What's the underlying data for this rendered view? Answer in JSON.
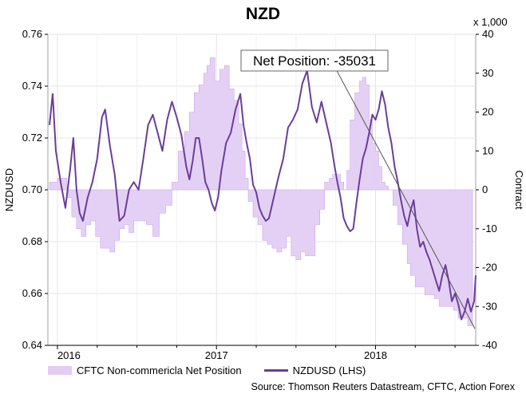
{
  "chart_data": {
    "type": "line",
    "title": "NZD",
    "left_axis": {
      "label": "NZDUSD",
      "ylim": [
        0.64,
        0.76
      ],
      "ticks": [
        "0.76",
        "0.74",
        "0.72",
        "0.70",
        "0.68",
        "0.66",
        "0.64"
      ]
    },
    "right_axis": {
      "label": "Contract",
      "unit": "x 1,000",
      "ylim": [
        -40,
        40
      ],
      "ticks": [
        "40",
        "30",
        "20",
        "10",
        "0",
        "-10",
        "-20",
        "-30",
        "-40"
      ]
    },
    "x_ticks": [
      "2016",
      "2017",
      "2018"
    ],
    "annotation": "Net Position: -35031",
    "series": [
      {
        "name": "CFTC Non-commericla Net Position",
        "axis": "right",
        "kind": "area",
        "color": "#e3cdf4",
        "points": [
          [
            2015.95,
            2
          ],
          [
            2016.0,
            3
          ],
          [
            2016.03,
            3
          ],
          [
            2016.06,
            -2
          ],
          [
            2016.09,
            -7
          ],
          [
            2016.12,
            -10
          ],
          [
            2016.15,
            -12
          ],
          [
            2016.18,
            -9
          ],
          [
            2016.21,
            -8
          ],
          [
            2016.24,
            -12
          ],
          [
            2016.27,
            -15
          ],
          [
            2016.3,
            -15
          ],
          [
            2016.33,
            -16
          ],
          [
            2016.36,
            -13
          ],
          [
            2016.39,
            -10
          ],
          [
            2016.42,
            -9
          ],
          [
            2016.45,
            -11
          ],
          [
            2016.48,
            -8
          ],
          [
            2016.52,
            -8
          ],
          [
            2016.56,
            -9
          ],
          [
            2016.6,
            -12
          ],
          [
            2016.64,
            -6
          ],
          [
            2016.68,
            -4
          ],
          [
            2016.72,
            2
          ],
          [
            2016.76,
            10
          ],
          [
            2016.8,
            15
          ],
          [
            2016.83,
            20
          ],
          [
            2016.86,
            25
          ],
          [
            2016.89,
            27
          ],
          [
            2016.92,
            30
          ],
          [
            2016.94,
            32
          ],
          [
            2016.96,
            34
          ],
          [
            2016.99,
            28
          ],
          [
            2017.02,
            31
          ],
          [
            2017.05,
            32
          ],
          [
            2017.08,
            26
          ],
          [
            2017.11,
            23
          ],
          [
            2017.14,
            17
          ],
          [
            2017.16,
            10
          ],
          [
            2017.18,
            3
          ],
          [
            2017.2,
            -3
          ],
          [
            2017.23,
            -7
          ],
          [
            2017.26,
            -9
          ],
          [
            2017.29,
            -13
          ],
          [
            2017.32,
            -14
          ],
          [
            2017.35,
            -15
          ],
          [
            2017.38,
            -16
          ],
          [
            2017.41,
            -15
          ],
          [
            2017.44,
            -12
          ],
          [
            2017.47,
            -17
          ],
          [
            2017.5,
            -18
          ],
          [
            2017.53,
            -16
          ],
          [
            2017.56,
            -17
          ],
          [
            2017.59,
            -17
          ],
          [
            2017.62,
            -9
          ],
          [
            2017.65,
            -5
          ],
          [
            2017.68,
            2
          ],
          [
            2017.71,
            3
          ],
          [
            2017.73,
            4
          ],
          [
            2017.75,
            4
          ],
          [
            2017.78,
            2
          ],
          [
            2017.8,
            0
          ],
          [
            2017.82,
            5
          ],
          [
            2017.84,
            18
          ],
          [
            2017.87,
            25
          ],
          [
            2017.9,
            28
          ],
          [
            2017.92,
            29
          ],
          [
            2017.94,
            27
          ],
          [
            2017.96,
            18
          ],
          [
            2017.98,
            12
          ],
          [
            2018.0,
            10
          ],
          [
            2018.02,
            6
          ],
          [
            2018.04,
            2
          ],
          [
            2018.06,
            1
          ],
          [
            2018.08,
            0
          ],
          [
            2018.11,
            -4
          ],
          [
            2018.14,
            -9
          ],
          [
            2018.17,
            -14
          ],
          [
            2018.2,
            -19
          ],
          [
            2018.22,
            -22
          ],
          [
            2018.25,
            -25
          ],
          [
            2018.28,
            -25
          ],
          [
            2018.31,
            -27
          ],
          [
            2018.34,
            -27
          ],
          [
            2018.37,
            -28
          ],
          [
            2018.4,
            -30
          ],
          [
            2018.43,
            -30
          ],
          [
            2018.46,
            -30
          ],
          [
            2018.49,
            -31
          ],
          [
            2018.52,
            -33
          ],
          [
            2018.55,
            -33
          ],
          [
            2018.58,
            -35
          ],
          [
            2018.61,
            -35
          ]
        ]
      },
      {
        "name": "NZDUSD (LHS)",
        "axis": "left",
        "kind": "line",
        "color": "#6a3d9a",
        "points": [
          [
            2015.95,
            0.725
          ],
          [
            2015.97,
            0.737
          ],
          [
            2015.99,
            0.715
          ],
          [
            2016.02,
            0.703
          ],
          [
            2016.05,
            0.693
          ],
          [
            2016.08,
            0.708
          ],
          [
            2016.1,
            0.72
          ],
          [
            2016.12,
            0.7
          ],
          [
            2016.14,
            0.691
          ],
          [
            2016.16,
            0.688
          ],
          [
            2016.19,
            0.697
          ],
          [
            2016.22,
            0.703
          ],
          [
            2016.25,
            0.712
          ],
          [
            2016.28,
            0.728
          ],
          [
            2016.3,
            0.731
          ],
          [
            2016.33,
            0.717
          ],
          [
            2016.36,
            0.706
          ],
          [
            2016.39,
            0.688
          ],
          [
            2016.42,
            0.69
          ],
          [
            2016.45,
            0.7
          ],
          [
            2016.48,
            0.703
          ],
          [
            2016.51,
            0.7
          ],
          [
            2016.54,
            0.712
          ],
          [
            2016.57,
            0.725
          ],
          [
            2016.6,
            0.729
          ],
          [
            2016.63,
            0.722
          ],
          [
            2016.66,
            0.715
          ],
          [
            2016.69,
            0.727
          ],
          [
            2016.72,
            0.734
          ],
          [
            2016.75,
            0.728
          ],
          [
            2016.78,
            0.721
          ],
          [
            2016.81,
            0.709
          ],
          [
            2016.83,
            0.704
          ],
          [
            2016.85,
            0.711
          ],
          [
            2016.87,
            0.72
          ],
          [
            2016.89,
            0.72
          ],
          [
            2016.91,
            0.712
          ],
          [
            2016.93,
            0.703
          ],
          [
            2016.95,
            0.7
          ],
          [
            2016.97,
            0.695
          ],
          [
            2016.99,
            0.692
          ],
          [
            2017.01,
            0.697
          ],
          [
            2017.03,
            0.707
          ],
          [
            2017.06,
            0.718
          ],
          [
            2017.09,
            0.722
          ],
          [
            2017.12,
            0.731
          ],
          [
            2017.15,
            0.737
          ],
          [
            2017.17,
            0.725
          ],
          [
            2017.19,
            0.718
          ],
          [
            2017.21,
            0.712
          ],
          [
            2017.23,
            0.702
          ],
          [
            2017.25,
            0.699
          ],
          [
            2017.27,
            0.693
          ],
          [
            2017.29,
            0.69
          ],
          [
            2017.31,
            0.688
          ],
          [
            2017.33,
            0.689
          ],
          [
            2017.36,
            0.697
          ],
          [
            2017.39,
            0.705
          ],
          [
            2017.42,
            0.712
          ],
          [
            2017.45,
            0.724
          ],
          [
            2017.48,
            0.727
          ],
          [
            2017.51,
            0.731
          ],
          [
            2017.54,
            0.741
          ],
          [
            2017.57,
            0.746
          ],
          [
            2017.6,
            0.732
          ],
          [
            2017.63,
            0.726
          ],
          [
            2017.66,
            0.734
          ],
          [
            2017.69,
            0.726
          ],
          [
            2017.72,
            0.718
          ],
          [
            2017.74,
            0.71
          ],
          [
            2017.76,
            0.703
          ],
          [
            2017.78,
            0.697
          ],
          [
            2017.8,
            0.689
          ],
          [
            2017.82,
            0.686
          ],
          [
            2017.84,
            0.684
          ],
          [
            2017.86,
            0.685
          ],
          [
            2017.88,
            0.695
          ],
          [
            2017.9,
            0.704
          ],
          [
            2017.92,
            0.712
          ],
          [
            2017.94,
            0.716
          ],
          [
            2017.96,
            0.722
          ],
          [
            2017.98,
            0.729
          ],
          [
            2018.0,
            0.727
          ],
          [
            2018.02,
            0.731
          ],
          [
            2018.04,
            0.738
          ],
          [
            2018.06,
            0.733
          ],
          [
            2018.08,
            0.724
          ],
          [
            2018.1,
            0.718
          ],
          [
            2018.12,
            0.709
          ],
          [
            2018.14,
            0.703
          ],
          [
            2018.16,
            0.696
          ],
          [
            2018.18,
            0.69
          ],
          [
            2018.2,
            0.686
          ],
          [
            2018.22,
            0.692
          ],
          [
            2018.24,
            0.696
          ],
          [
            2018.26,
            0.685
          ],
          [
            2018.28,
            0.678
          ],
          [
            2018.3,
            0.68
          ],
          [
            2018.32,
            0.676
          ],
          [
            2018.34,
            0.673
          ],
          [
            2018.36,
            0.669
          ],
          [
            2018.38,
            0.665
          ],
          [
            2018.4,
            0.661
          ],
          [
            2018.42,
            0.667
          ],
          [
            2018.44,
            0.671
          ],
          [
            2018.46,
            0.665
          ],
          [
            2018.48,
            0.657
          ],
          [
            2018.5,
            0.66
          ],
          [
            2018.52,
            0.656
          ],
          [
            2018.54,
            0.65
          ],
          [
            2018.56,
            0.653
          ],
          [
            2018.58,
            0.658
          ],
          [
            2018.6,
            0.653
          ],
          [
            2018.62,
            0.657
          ],
          [
            2018.63,
            0.667
          ]
        ]
      }
    ]
  },
  "legend": {
    "area_label": "CFTC Non-commericla Net Position",
    "line_label": "NZDUSD (LHS)"
  },
  "source": "Source: Thomson Reuters Datastream, CFTC, Action Forex"
}
